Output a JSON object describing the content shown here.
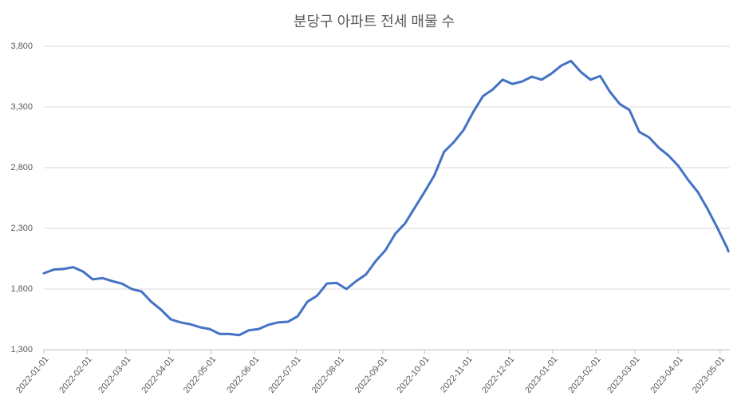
{
  "chart_data": {
    "type": "line",
    "title": "분당구 아파트 전세 매물 수",
    "x": [
      "2022-01-01",
      "2022-01-08",
      "2022-01-15",
      "2022-01-22",
      "2022-01-29",
      "2022-02-05",
      "2022-02-12",
      "2022-02-19",
      "2022-02-26",
      "2022-03-05",
      "2022-03-12",
      "2022-03-19",
      "2022-03-26",
      "2022-04-02",
      "2022-04-09",
      "2022-04-16",
      "2022-04-23",
      "2022-04-30",
      "2022-05-07",
      "2022-05-14",
      "2022-05-21",
      "2022-05-28",
      "2022-06-04",
      "2022-06-11",
      "2022-06-18",
      "2022-06-25",
      "2022-07-02",
      "2022-07-09",
      "2022-07-16",
      "2022-07-23",
      "2022-07-30",
      "2022-08-06",
      "2022-08-13",
      "2022-08-20",
      "2022-08-27",
      "2022-09-03",
      "2022-09-10",
      "2022-09-17",
      "2022-09-24",
      "2022-10-01",
      "2022-10-08",
      "2022-10-15",
      "2022-10-22",
      "2022-10-29",
      "2022-11-05",
      "2022-11-12",
      "2022-11-19",
      "2022-11-26",
      "2022-12-03",
      "2022-12-10",
      "2022-12-17",
      "2022-12-24",
      "2022-12-31",
      "2023-01-07",
      "2023-01-14",
      "2023-01-21",
      "2023-01-28",
      "2023-02-04",
      "2023-02-11",
      "2023-02-18",
      "2023-02-25",
      "2023-03-04",
      "2023-03-11",
      "2023-03-18",
      "2023-03-25",
      "2023-04-01",
      "2023-04-08",
      "2023-04-15",
      "2023-04-22",
      "2023-04-29",
      "2023-05-06",
      "2023-05-07"
    ],
    "values": [
      1930,
      1960,
      1965,
      1980,
      1945,
      1880,
      1890,
      1865,
      1845,
      1800,
      1780,
      1695,
      1630,
      1550,
      1525,
      1510,
      1485,
      1470,
      1430,
      1430,
      1420,
      1460,
      1470,
      1505,
      1525,
      1530,
      1575,
      1695,
      1745,
      1845,
      1850,
      1800,
      1865,
      1920,
      2030,
      2120,
      2255,
      2340,
      2470,
      2600,
      2735,
      2930,
      3010,
      3110,
      3260,
      3390,
      3445,
      3525,
      3490,
      3510,
      3550,
      3525,
      3575,
      3640,
      3680,
      3590,
      3525,
      3555,
      3425,
      3325,
      3275,
      3095,
      3050,
      2965,
      2900,
      2815,
      2700,
      2600,
      2460,
      2305,
      2140,
      2110
    ],
    "color": "#4472c4",
    "xlim": [
      "2022-01-01",
      "2023-05-08"
    ],
    "xticks": [
      "2022-01-01",
      "2022-02-01",
      "2022-03-01",
      "2022-04-01",
      "2022-05-01",
      "2022-06-01",
      "2022-07-01",
      "2022-08-01",
      "2022-09-01",
      "2022-10-01",
      "2022-11-01",
      "2022-12-01",
      "2023-01-01",
      "2023-02-01",
      "2023-03-01",
      "2023-04-01",
      "2023-05-01"
    ],
    "ylim": [
      1300,
      3800
    ],
    "yticks": [
      {
        "value": 1300,
        "label": "1,300"
      },
      {
        "value": 1800,
        "label": "1,800"
      },
      {
        "value": 2300,
        "label": "2,300"
      },
      {
        "value": 2800,
        "label": "2,800"
      },
      {
        "value": 3300,
        "label": "3,300"
      },
      {
        "value": 3800,
        "label": "3,800"
      }
    ],
    "grid": true
  }
}
